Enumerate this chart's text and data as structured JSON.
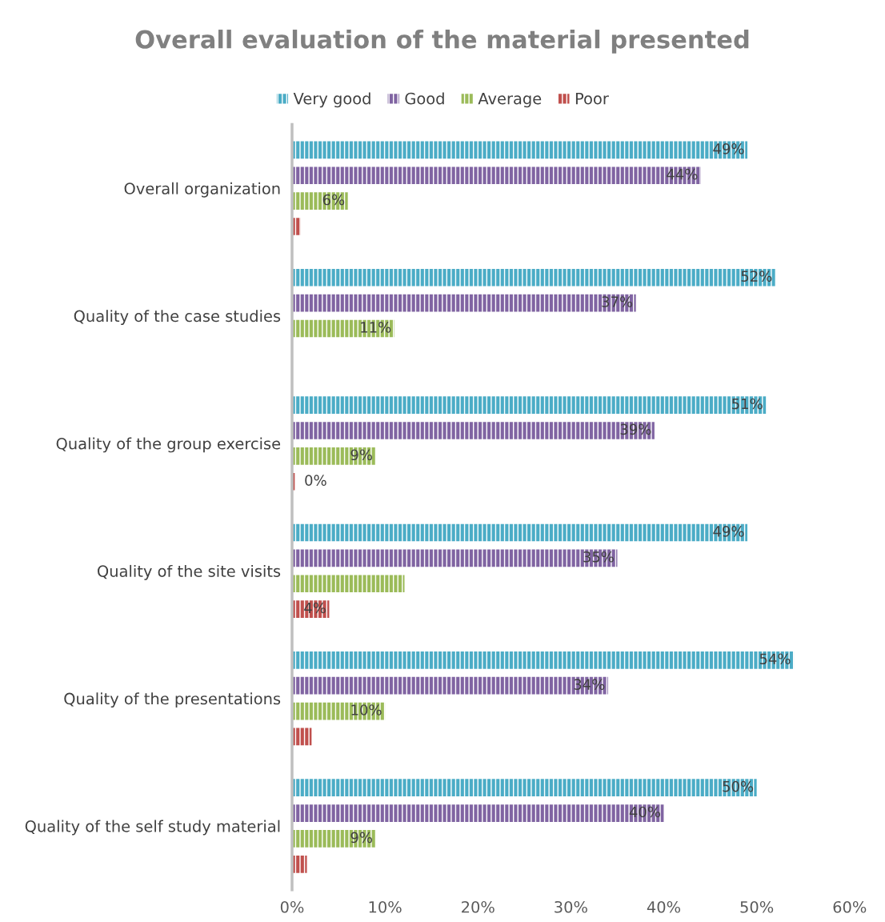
{
  "chart_data": {
    "type": "bar",
    "orientation": "horizontal",
    "title": "Overall evaluation of the material presented",
    "categories": [
      "Overall organization",
      "Quality of the case studies",
      "Quality of the group exercise",
      "Quality of the site visits",
      "Quality of the presentations",
      "Quality of the self study material"
    ],
    "series": [
      {
        "name": "Very good",
        "color": "#4bacc6",
        "values": [
          49,
          52,
          51,
          49,
          54,
          50
        ],
        "value_labels": [
          "49%",
          "52%",
          "51%",
          "49%",
          "54%",
          "50%"
        ]
      },
      {
        "name": "Good",
        "color": "#8064a2",
        "values": [
          44,
          37,
          39,
          35,
          34,
          40
        ],
        "value_labels": [
          "44%",
          "37%",
          "39%",
          "35%",
          "34%",
          "40%"
        ]
      },
      {
        "name": "Average",
        "color": "#9bbb59",
        "values": [
          6,
          11,
          9,
          12.1,
          10,
          9
        ],
        "value_labels": [
          "6%",
          "11%",
          "9%",
          null,
          "10%",
          "9%"
        ]
      },
      {
        "name": "Poor",
        "color": "#c0504d",
        "values": [
          0.9,
          null,
          0.3,
          4,
          2.1,
          1.6
        ],
        "value_labels": [
          null,
          null,
          "0%",
          "4%",
          null,
          null
        ]
      }
    ],
    "xlim": [
      0,
      60
    ],
    "xticks": [
      {
        "value": 0,
        "label": "0%"
      },
      {
        "value": 10,
        "label": "10%"
      },
      {
        "value": 20,
        "label": "20%"
      },
      {
        "value": 30,
        "label": "30%"
      },
      {
        "value": 40,
        "label": "40%"
      },
      {
        "value": 50,
        "label": "50%"
      },
      {
        "value": 60,
        "label": "60%"
      }
    ],
    "grid": false,
    "legend": "top"
  }
}
